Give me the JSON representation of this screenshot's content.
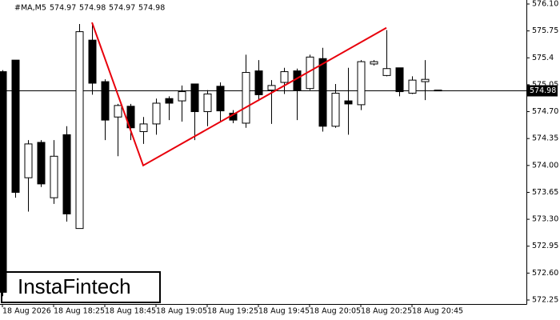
{
  "chart_data": {
    "type": "candlestick",
    "header": {
      "symbol": "#MA,M5",
      "ohlc": [
        574.97,
        574.98,
        574.97,
        574.98
      ]
    },
    "categories": [
      "18 Aug 2026",
      null,
      null,
      null,
      "18 Aug 18:25",
      null,
      null,
      null,
      "18 Aug 18:45",
      null,
      null,
      null,
      "18 Aug 19:05",
      null,
      null,
      null,
      "18 Aug 19:25",
      null,
      null,
      null,
      "18 Aug 19:45",
      null,
      null,
      null,
      "18 Aug 20:05",
      null,
      null,
      null,
      "18 Aug 20:25",
      null,
      null,
      null,
      "18 Aug 20:45",
      null,
      null
    ],
    "open": [
      575.22,
      575.37,
      573.84,
      574.3,
      573.58,
      574.4,
      573.18,
      575.63,
      575.09,
      574.63,
      574.77,
      574.44,
      574.54,
      574.87,
      574.84,
      575.06,
      574.7,
      575.03,
      574.68,
      574.55,
      575.23,
      574.98,
      575.08,
      575.23,
      575.0,
      575.39,
      574.51,
      574.84,
      574.79,
      575.32,
      575.17,
      575.27,
      574.94,
      575.09,
      574.97
    ],
    "high": [
      575.24,
      575.37,
      574.33,
      574.33,
      574.33,
      574.51,
      575.84,
      575.86,
      575.12,
      574.8,
      574.8,
      574.63,
      574.87,
      574.9,
      575.04,
      575.06,
      574.98,
      575.08,
      574.72,
      575.44,
      575.37,
      575.11,
      575.27,
      575.26,
      575.44,
      575.53,
      575.06,
      575.27,
      575.37,
      575.37,
      575.76,
      575.27,
      575.16,
      575.37,
      574.98
    ],
    "low": [
      572.3,
      573.58,
      573.4,
      573.72,
      573.5,
      573.27,
      573.18,
      574.92,
      574.33,
      574.12,
      574.33,
      574.28,
      574.4,
      574.59,
      574.57,
      574.33,
      574.51,
      574.57,
      574.55,
      574.49,
      574.84,
      574.54,
      574.93,
      574.59,
      574.98,
      574.44,
      574.49,
      574.4,
      574.72,
      575.3,
      575.16,
      574.9,
      574.93,
      574.85,
      574.97
    ],
    "close": [
      572.35,
      573.65,
      574.28,
      573.76,
      574.12,
      573.37,
      575.74,
      575.07,
      574.59,
      574.78,
      574.49,
      574.54,
      574.81,
      574.81,
      574.96,
      574.7,
      574.93,
      574.71,
      574.59,
      575.21,
      574.92,
      575.04,
      575.22,
      574.98,
      575.41,
      574.51,
      574.94,
      574.8,
      575.35,
      575.35,
      575.26,
      574.96,
      575.11,
      575.12,
      574.98
    ],
    "up_color": "#ffffff",
    "down_color": "#000000",
    "ylim": [
      572.25,
      576.1
    ],
    "yticks": [
      {
        "value": 576.1,
        "label": "576.10"
      },
      575.75,
      575.4,
      {
        "value": 575.05,
        "label": "575.05"
      },
      {
        "value": 574.7,
        "label": "574.70"
      },
      574.35,
      {
        "value": 574.0,
        "label": "574.00"
      },
      573.65,
      {
        "value": 573.3,
        "label": "573.30"
      },
      572.95,
      {
        "value": 572.6,
        "label": "572.60"
      },
      572.25
    ],
    "bid": {
      "value": 574.98,
      "label": "574.98"
    },
    "pattern": {
      "color": "#e8000b",
      "x": [
        7,
        11,
        30
      ],
      "y": [
        575.86,
        574.0,
        575.79
      ]
    },
    "logo": "InstaFintech"
  }
}
